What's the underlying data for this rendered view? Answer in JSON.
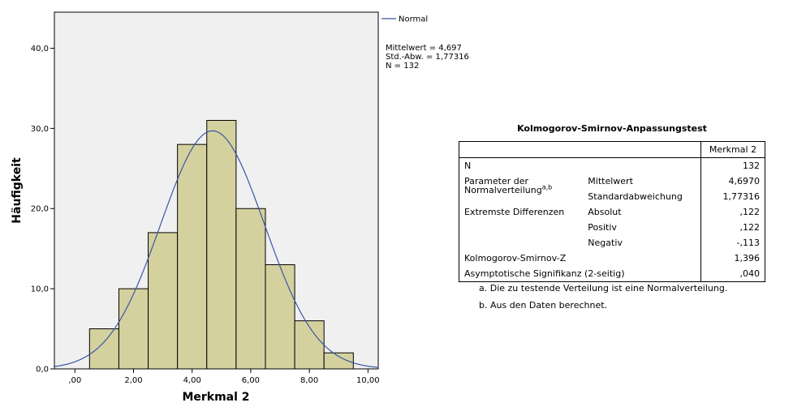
{
  "chart_data": {
    "type": "bar",
    "subtype": "histogram",
    "bins": [
      {
        "from": 0.5,
        "to": 1.5,
        "count": 5
      },
      {
        "from": 1.5,
        "to": 2.5,
        "count": 10
      },
      {
        "from": 2.5,
        "to": 3.5,
        "count": 17
      },
      {
        "from": 3.5,
        "to": 4.5,
        "count": 28
      },
      {
        "from": 4.5,
        "to": 5.5,
        "count": 31
      },
      {
        "from": 5.5,
        "to": 6.5,
        "count": 20
      },
      {
        "from": 6.5,
        "to": 7.5,
        "count": 13
      },
      {
        "from": 7.5,
        "to": 8.5,
        "count": 6
      },
      {
        "from": 8.5,
        "to": 9.5,
        "count": 2
      }
    ],
    "normal_curve": {
      "mean": 4.697,
      "sd": 1.77316,
      "n": 132,
      "bin_width": 1
    },
    "xlabel": "Merkmal 2",
    "ylabel": "Häufigkeit",
    "xlim": [
      -0.7,
      10.35
    ],
    "ylim": [
      0,
      44.5
    ],
    "xticks": [
      0,
      2,
      4,
      6,
      8,
      10
    ],
    "xtick_labels": [
      ",00",
      "2,00",
      "4,00",
      "6,00",
      "8,00",
      "10,00"
    ],
    "yticks": [
      0,
      10,
      20,
      30,
      40
    ],
    "ytick_labels": [
      "0,0",
      "10,0",
      "20,0",
      "30,0",
      "40,0"
    ],
    "legend": {
      "entries": [
        "Normal"
      ],
      "placement": "right"
    },
    "stats_lines": [
      "Mittelwert = 4,697",
      "Std.-Abw. = 1,77316",
      "N = 132"
    ],
    "grid": false,
    "colors": {
      "bar_fill": "#d4d19f",
      "bar_stroke": "#000000",
      "plot_bg": "#f0f0f0",
      "curve": "#3a55a4"
    }
  },
  "ks_test": {
    "title": "Kolmogorov-Smirnov-Anpassungstest",
    "column_header": "Merkmal 2",
    "rows": [
      {
        "label": "N",
        "sub": "",
        "value": "132"
      },
      {
        "label": "Parameter der",
        "label2": "Normalverteilung",
        "label_sup": "a,b",
        "sub": "Mittelwert",
        "value": "4,6970"
      },
      {
        "label": "",
        "sub": "Standardabweichung",
        "value": "1,77316"
      },
      {
        "label": "Extremste Differenzen",
        "sub": "Absolut",
        "value": ",122"
      },
      {
        "label": "",
        "sub": "Positiv",
        "value": ",122"
      },
      {
        "label": "",
        "sub": "Negativ",
        "value": "-,113"
      },
      {
        "label": "Kolmogorov-Smirnov-Z",
        "sub": "",
        "value": "1,396"
      },
      {
        "label": "Asymptotische Signifikanz (2-seitig)",
        "sub": "",
        "value": ",040"
      }
    ],
    "footnotes": [
      "a. Die zu testende Verteilung ist eine Normalverteilung.",
      "b. Aus den Daten berechnet."
    ]
  }
}
